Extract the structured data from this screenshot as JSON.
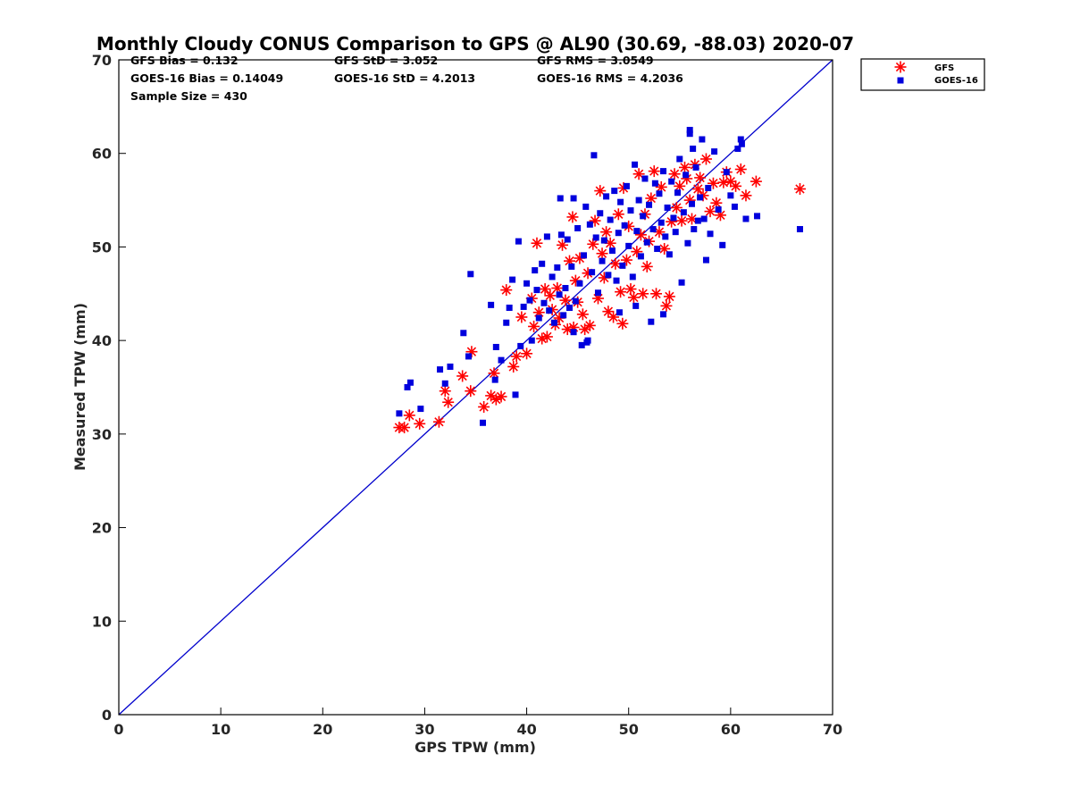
{
  "chart_data": {
    "type": "scatter",
    "title": "Monthly Cloudy CONUS Comparison to GPS @ AL90 (30.69, -88.03) 2020-07",
    "xlabel": "GPS TPW (mm)",
    "ylabel": "Measured TPW (mm)",
    "xlim": [
      0,
      70
    ],
    "ylim": [
      0,
      70
    ],
    "xticks": [
      "0",
      "10",
      "20",
      "30",
      "40",
      "50",
      "60",
      "70"
    ],
    "yticks": [
      "0",
      "10",
      "20",
      "30",
      "40",
      "50",
      "60",
      "70"
    ],
    "grid": false,
    "legend_position": "top-right, outside plot",
    "reference_line": {
      "x": [
        0,
        70
      ],
      "y": [
        0,
        70
      ],
      "color": "#0000cc"
    },
    "stats": {
      "gfs_bias": "GFS Bias = 0.132",
      "gfs_std": "GFS StD = 3.052",
      "gfs_rms": "GFS RMS = 3.0549",
      "goes_bias": "GOES-16 Bias = 0.14049",
      "goes_std": "GOES-16 StD = 4.2013",
      "goes_rms": "GOES-16 RMS = 4.2036",
      "sample_size": "Sample Size = 430"
    },
    "series": [
      {
        "name": "GFS",
        "marker": "asterisk",
        "color": "#ff0000",
        "points": [
          [
            27.5,
            30.7
          ],
          [
            28.0,
            30.7
          ],
          [
            28.5,
            32.0
          ],
          [
            29.5,
            31.1
          ],
          [
            31.4,
            31.3
          ],
          [
            32.0,
            34.6
          ],
          [
            32.3,
            33.4
          ],
          [
            33.7,
            36.2
          ],
          [
            34.5,
            34.6
          ],
          [
            34.6,
            38.8
          ],
          [
            35.8,
            32.9
          ],
          [
            36.5,
            34.1
          ],
          [
            36.8,
            36.5
          ],
          [
            37.0,
            33.7
          ],
          [
            37.5,
            34.0
          ],
          [
            38.0,
            45.4
          ],
          [
            38.7,
            37.2
          ],
          [
            39.0,
            38.3
          ],
          [
            39.5,
            42.5
          ],
          [
            40.0,
            38.6
          ],
          [
            40.5,
            44.5
          ],
          [
            40.7,
            41.5
          ],
          [
            41.0,
            50.4
          ],
          [
            41.2,
            43.0
          ],
          [
            41.5,
            40.2
          ],
          [
            41.8,
            45.5
          ],
          [
            42.0,
            40.4
          ],
          [
            42.3,
            44.8
          ],
          [
            42.5,
            43.3
          ],
          [
            42.8,
            41.7
          ],
          [
            43.0,
            45.6
          ],
          [
            43.2,
            42.4
          ],
          [
            43.5,
            50.2
          ],
          [
            43.8,
            44.3
          ],
          [
            44.0,
            41.2
          ],
          [
            44.2,
            48.5
          ],
          [
            44.5,
            53.2
          ],
          [
            44.6,
            41.4
          ],
          [
            44.8,
            46.4
          ],
          [
            45.0,
            44.1
          ],
          [
            45.2,
            48.8
          ],
          [
            45.5,
            42.8
          ],
          [
            45.7,
            41.2
          ],
          [
            46.0,
            47.2
          ],
          [
            46.2,
            41.6
          ],
          [
            46.5,
            50.3
          ],
          [
            46.7,
            52.8
          ],
          [
            47.0,
            44.5
          ],
          [
            47.2,
            56.0
          ],
          [
            47.4,
            49.3
          ],
          [
            47.6,
            46.7
          ],
          [
            47.8,
            51.6
          ],
          [
            48.0,
            43.1
          ],
          [
            48.2,
            50.4
          ],
          [
            48.5,
            42.5
          ],
          [
            48.7,
            48.2
          ],
          [
            49.0,
            53.5
          ],
          [
            49.2,
            45.2
          ],
          [
            49.4,
            41.8
          ],
          [
            49.5,
            56.3
          ],
          [
            49.8,
            48.6
          ],
          [
            50.0,
            52.2
          ],
          [
            50.2,
            45.5
          ],
          [
            50.5,
            44.6
          ],
          [
            50.8,
            49.5
          ],
          [
            51.0,
            57.8
          ],
          [
            51.2,
            51.3
          ],
          [
            51.4,
            45.0
          ],
          [
            51.6,
            53.5
          ],
          [
            51.8,
            47.9
          ],
          [
            52.0,
            50.6
          ],
          [
            52.2,
            55.2
          ],
          [
            52.5,
            58.1
          ],
          [
            52.7,
            45.0
          ],
          [
            53.0,
            51.6
          ],
          [
            53.2,
            56.4
          ],
          [
            53.5,
            49.8
          ],
          [
            53.7,
            43.7
          ],
          [
            54.0,
            44.7
          ],
          [
            54.2,
            52.7
          ],
          [
            54.5,
            57.8
          ],
          [
            54.7,
            54.2
          ],
          [
            55.0,
            56.5
          ],
          [
            55.2,
            52.8
          ],
          [
            55.5,
            58.5
          ],
          [
            55.7,
            57.3
          ],
          [
            56.0,
            55.0
          ],
          [
            56.2,
            53.0
          ],
          [
            56.5,
            58.8
          ],
          [
            56.8,
            56.2
          ],
          [
            57.0,
            57.4
          ],
          [
            57.3,
            55.5
          ],
          [
            57.6,
            59.4
          ],
          [
            58.0,
            53.8
          ],
          [
            58.3,
            56.8
          ],
          [
            58.6,
            54.7
          ],
          [
            59.0,
            53.4
          ],
          [
            59.3,
            56.9
          ],
          [
            59.6,
            58.0
          ],
          [
            60.0,
            57.0
          ],
          [
            60.5,
            56.5
          ],
          [
            61.0,
            58.3
          ],
          [
            61.5,
            55.5
          ],
          [
            62.5,
            57.0
          ],
          [
            66.8,
            56.2
          ]
        ]
      },
      {
        "name": "GOES-16",
        "marker": "square",
        "color": "#0000dd",
        "points": [
          [
            27.5,
            32.2
          ],
          [
            28.3,
            35.0
          ],
          [
            28.6,
            35.5
          ],
          [
            29.6,
            32.7
          ],
          [
            31.5,
            36.9
          ],
          [
            32.0,
            35.4
          ],
          [
            32.5,
            37.2
          ],
          [
            33.8,
            40.8
          ],
          [
            34.3,
            38.3
          ],
          [
            34.5,
            47.1
          ],
          [
            35.7,
            31.2
          ],
          [
            36.5,
            43.8
          ],
          [
            36.9,
            35.8
          ],
          [
            37.0,
            39.3
          ],
          [
            37.5,
            37.9
          ],
          [
            38.0,
            41.9
          ],
          [
            38.3,
            43.5
          ],
          [
            38.6,
            46.5
          ],
          [
            38.9,
            34.2
          ],
          [
            39.2,
            50.6
          ],
          [
            39.4,
            39.4
          ],
          [
            39.7,
            43.6
          ],
          [
            40.0,
            46.1
          ],
          [
            40.3,
            44.3
          ],
          [
            40.5,
            40.0
          ],
          [
            40.8,
            47.5
          ],
          [
            41.0,
            45.4
          ],
          [
            41.2,
            42.4
          ],
          [
            41.5,
            48.2
          ],
          [
            41.7,
            44.0
          ],
          [
            42.0,
            51.1
          ],
          [
            42.2,
            43.2
          ],
          [
            42.5,
            46.8
          ],
          [
            42.7,
            41.9
          ],
          [
            43.0,
            47.8
          ],
          [
            43.2,
            44.9
          ],
          [
            43.4,
            51.3
          ],
          [
            43.6,
            42.7
          ],
          [
            43.8,
            45.6
          ],
          [
            44.0,
            50.8
          ],
          [
            44.2,
            43.5
          ],
          [
            44.4,
            47.9
          ],
          [
            44.6,
            55.2
          ],
          [
            44.8,
            44.2
          ],
          [
            45.0,
            52.0
          ],
          [
            45.2,
            46.1
          ],
          [
            45.4,
            39.5
          ],
          [
            45.6,
            49.1
          ],
          [
            45.8,
            54.3
          ],
          [
            46.0,
            40.0
          ],
          [
            46.2,
            52.4
          ],
          [
            46.4,
            47.3
          ],
          [
            46.6,
            59.8
          ],
          [
            46.8,
            51.0
          ],
          [
            47.0,
            45.1
          ],
          [
            47.2,
            53.6
          ],
          [
            47.4,
            48.5
          ],
          [
            47.6,
            50.7
          ],
          [
            47.8,
            55.4
          ],
          [
            48.0,
            47.0
          ],
          [
            48.2,
            52.9
          ],
          [
            48.4,
            49.6
          ],
          [
            48.6,
            56.0
          ],
          [
            48.8,
            46.4
          ],
          [
            49.0,
            51.5
          ],
          [
            49.2,
            54.8
          ],
          [
            49.4,
            48.0
          ],
          [
            49.6,
            52.3
          ],
          [
            49.8,
            56.5
          ],
          [
            50.0,
            50.1
          ],
          [
            50.2,
            53.9
          ],
          [
            50.4,
            46.8
          ],
          [
            50.6,
            58.8
          ],
          [
            50.8,
            51.7
          ],
          [
            51.0,
            55.0
          ],
          [
            51.2,
            49.0
          ],
          [
            51.4,
            53.3
          ],
          [
            51.6,
            57.3
          ],
          [
            51.8,
            50.5
          ],
          [
            52.0,
            54.5
          ],
          [
            52.2,
            42.0
          ],
          [
            52.4,
            51.9
          ],
          [
            52.6,
            56.8
          ],
          [
            52.8,
            49.8
          ],
          [
            53.0,
            55.7
          ],
          [
            53.2,
            52.6
          ],
          [
            53.4,
            58.1
          ],
          [
            53.6,
            51.1
          ],
          [
            53.8,
            54.2
          ],
          [
            54.0,
            49.2
          ],
          [
            54.2,
            57.0
          ],
          [
            54.4,
            53.1
          ],
          [
            54.6,
            51.6
          ],
          [
            54.8,
            55.8
          ],
          [
            55.0,
            59.4
          ],
          [
            55.2,
            46.2
          ],
          [
            55.4,
            53.7
          ],
          [
            55.6,
            57.7
          ],
          [
            55.8,
            50.4
          ],
          [
            56.0,
            62.1
          ],
          [
            56.2,
            54.6
          ],
          [
            56.4,
            51.9
          ],
          [
            56.6,
            58.5
          ],
          [
            56.8,
            52.8
          ],
          [
            57.0,
            55.3
          ],
          [
            57.2,
            61.5
          ],
          [
            57.4,
            53.0
          ],
          [
            57.6,
            48.6
          ],
          [
            57.8,
            56.3
          ],
          [
            58.0,
            51.4
          ],
          [
            58.4,
            60.2
          ],
          [
            58.8,
            54.0
          ],
          [
            59.2,
            50.2
          ],
          [
            59.6,
            58.0
          ],
          [
            60.0,
            55.5
          ],
          [
            60.4,
            54.3
          ],
          [
            60.7,
            60.5
          ],
          [
            61.0,
            61.5
          ],
          [
            61.5,
            53.0
          ],
          [
            62.6,
            53.3
          ],
          [
            66.8,
            51.9
          ],
          [
            43.3,
            55.2
          ],
          [
            44.6,
            40.9
          ],
          [
            45.9,
            39.8
          ],
          [
            49.1,
            43.0
          ],
          [
            50.7,
            43.7
          ],
          [
            53.4,
            42.8
          ],
          [
            56.0,
            62.5
          ],
          [
            56.3,
            60.5
          ],
          [
            61.1,
            61.0
          ]
        ]
      }
    ]
  }
}
